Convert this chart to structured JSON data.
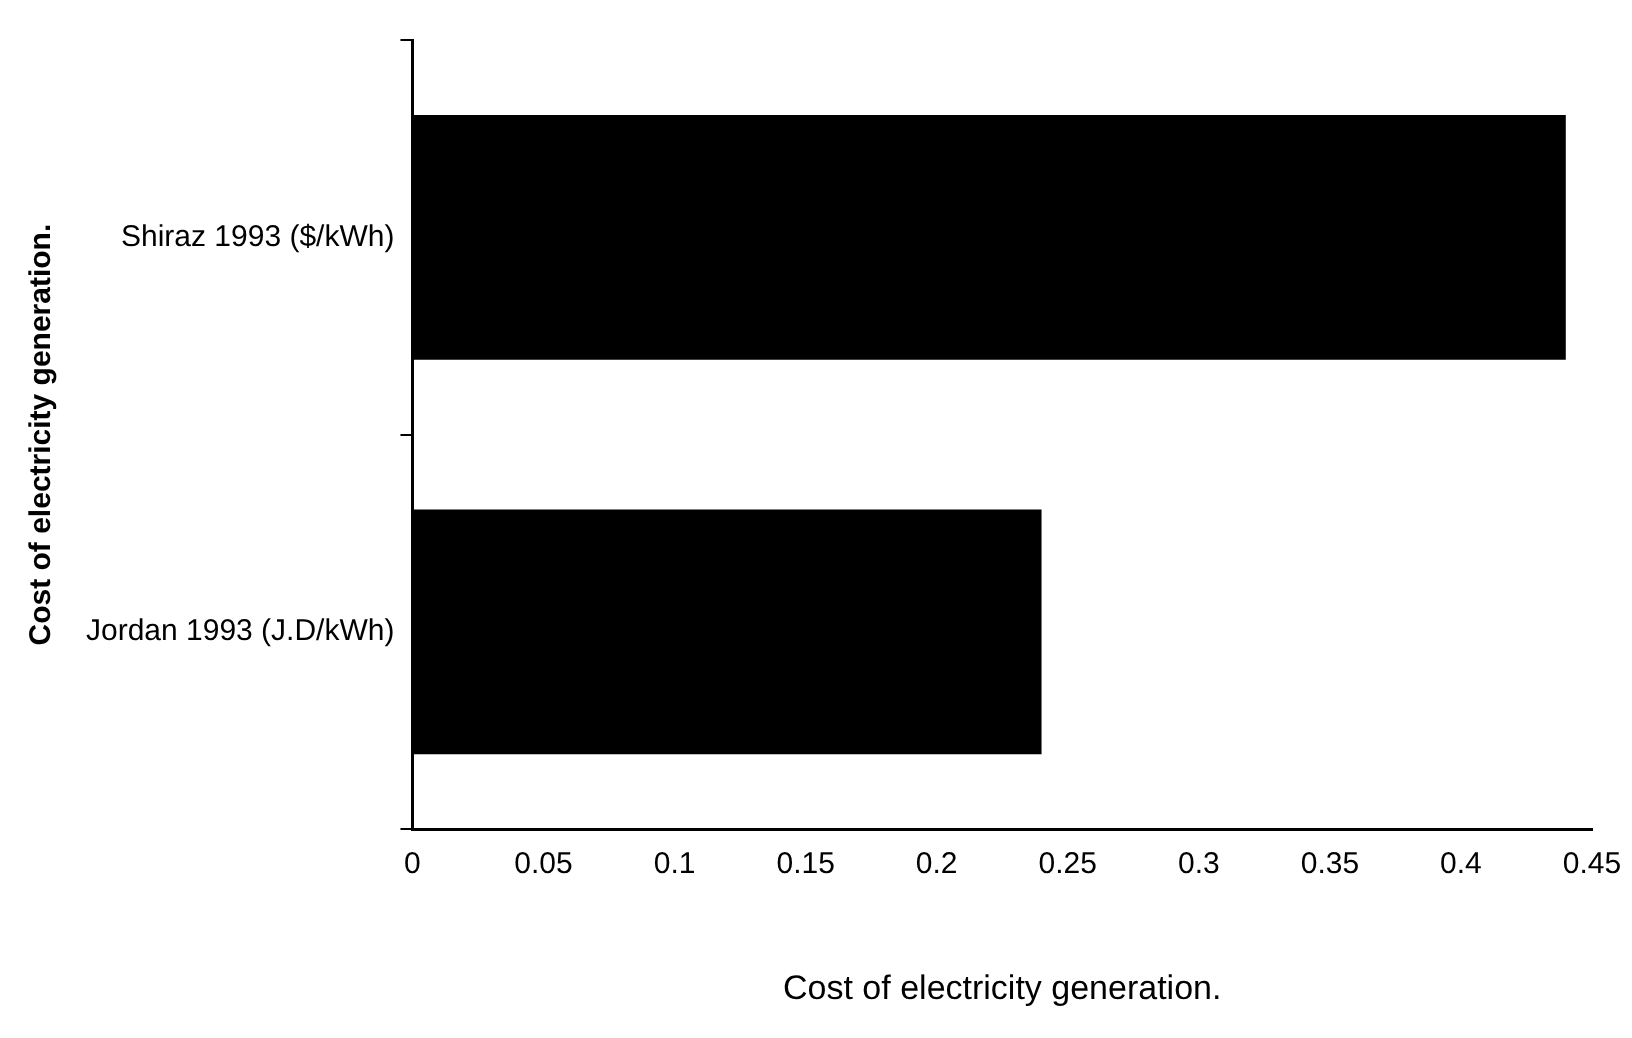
{
  "chart_data": {
    "type": "bar",
    "orientation": "horizontal",
    "categories": [
      "Shiraz 1993 ($/kWh)",
      "Jordan 1993 (J.D/kWh)"
    ],
    "values": [
      0.44,
      0.24
    ],
    "color": "#000000",
    "xlim": [
      0,
      0.45
    ],
    "xticks": [
      0,
      0.05,
      0.1,
      0.15,
      0.2,
      0.25,
      0.3,
      0.35,
      0.4,
      0.45
    ],
    "xlabel": "Cost of electricity generation.",
    "ylabel": "Cost of electricity generation.",
    "grid": false,
    "legend": false
  }
}
